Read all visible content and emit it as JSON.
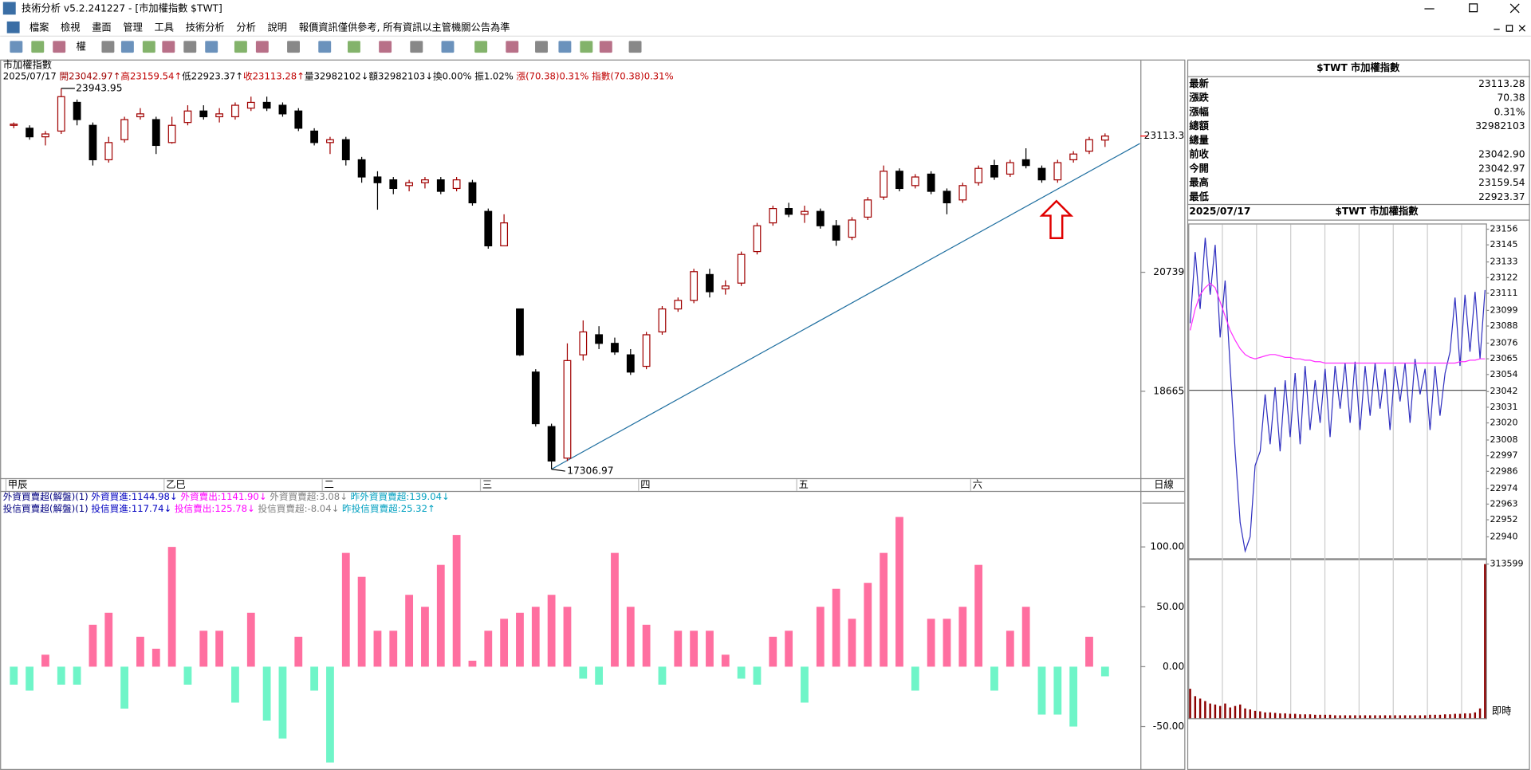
{
  "window": {
    "title": "技術分析 v5.2.241227 - [市加權指數 $TWT]"
  },
  "menu": [
    "檔案",
    "檢視",
    "畫面",
    "管理",
    "工具",
    "技術分析",
    "分析",
    "說明",
    "報價資訊僅供參考, 所有資訊以主管機關公告為準"
  ],
  "toolbar": {
    "label": "權"
  },
  "quote": {
    "title": "$TWT 市加權指數",
    "rows": [
      {
        "label": "最新",
        "value": "23113.28",
        "color": "#a00000"
      },
      {
        "label": "漲跌",
        "value": "70.38",
        "color": "#a00000"
      },
      {
        "label": "漲幅",
        "value": "0.31%",
        "color": "#a00000"
      },
      {
        "label": "總額",
        "value": "32982103",
        "color": "#000000"
      },
      {
        "label": "總量"
      },
      {
        "label": "前收",
        "value": "23042.90",
        "color": "#000000"
      },
      {
        "label": "今開",
        "value": "23042.97",
        "color": "#a00000"
      },
      {
        "label": "最高",
        "value": "23159.54",
        "color": "#a00000"
      },
      {
        "label": "最低",
        "value": "22923.37",
        "color": "#008000"
      }
    ]
  },
  "chart_data": [
    {
      "type": "candlestick",
      "title": "市加權指數",
      "period": "日線",
      "info": [
        {
          "text": "2025/07/17 ",
          "color": "#000000"
        },
        {
          "text": "開23042.97↑",
          "color": "#a00000"
        },
        {
          "text": "高23159.54↑",
          "color": "#c00000"
        },
        {
          "text": "低22923.37↑",
          "color": "#000000"
        },
        {
          "text": "收23113.28↑",
          "color": "#c00000"
        },
        {
          "text": "量32982102↓",
          "color": "#000000"
        },
        {
          "text": "額32982103↓",
          "color": "#000000"
        },
        {
          "text": "換0.00% 振1.02% ",
          "color": "#000000"
        },
        {
          "text": "漲(70.38)0.31% ",
          "color": "#c00000"
        },
        {
          "text": "指數(70.38)0.31%",
          "color": "#c00000"
        }
      ],
      "categories": [
        "甲辰",
        null,
        null,
        null,
        null,
        null,
        null,
        null,
        null,
        null,
        "乙巳",
        null,
        null,
        null,
        null,
        null,
        null,
        null,
        null,
        null,
        "二",
        null,
        null,
        null,
        null,
        null,
        null,
        null,
        null,
        null,
        "三",
        null,
        null,
        null,
        null,
        null,
        null,
        null,
        null,
        null,
        "四",
        null,
        null,
        null,
        null,
        null,
        null,
        null,
        null,
        null,
        "五",
        null,
        null,
        null,
        null,
        null,
        null,
        null,
        null,
        null,
        null,
        "六",
        null,
        null,
        null,
        null,
        null,
        null,
        null,
        null
      ],
      "open": [
        23300,
        23250,
        23100,
        23200,
        23700,
        23300,
        22700,
        23050,
        23450,
        23400,
        23000,
        23350,
        23550,
        23450,
        23450,
        23600,
        23700,
        23650,
        23550,
        23200,
        23000,
        23050,
        22700,
        22400,
        22350,
        22250,
        22300,
        22350,
        22200,
        22300,
        21800,
        21200,
        20100,
        19000,
        18050,
        17500,
        19300,
        19650,
        19500,
        19300,
        19100,
        19700,
        20100,
        20250,
        20700,
        20450,
        20550,
        21100,
        21600,
        21850,
        21750,
        21800,
        21550,
        21350,
        21700,
        22050,
        22500,
        22250,
        22450,
        22150,
        22000,
        22300,
        22600,
        22450,
        22700,
        22550,
        22350,
        22700,
        22850,
        23042.97
      ],
      "high": [
        23350,
        23300,
        23200,
        23943.95,
        23750,
        23350,
        23100,
        23450,
        23600,
        23450,
        23450,
        23650,
        23650,
        23600,
        23700,
        23800,
        23800,
        23700,
        23600,
        23250,
        23100,
        23100,
        22750,
        22500,
        22400,
        22350,
        22400,
        22400,
        22400,
        22350,
        21850,
        21750,
        20100,
        19050,
        18100,
        19500,
        19900,
        19800,
        19600,
        19400,
        19700,
        20150,
        20300,
        20800,
        20800,
        20600,
        21100,
        21600,
        21900,
        21950,
        21900,
        21850,
        21650,
        21700,
        22050,
        22600,
        22550,
        22450,
        22500,
        22200,
        22300,
        22600,
        22700,
        22700,
        22900,
        22600,
        22700,
        22850,
        23100,
        23159.54
      ],
      "low": [
        23250,
        23050,
        22950,
        23150,
        23300,
        22600,
        22650,
        23000,
        23400,
        22800,
        22980,
        23300,
        23400,
        23350,
        23400,
        23550,
        23550,
        23450,
        23200,
        22950,
        22800,
        22600,
        22300,
        21830,
        22100,
        22150,
        22200,
        22100,
        22150,
        21900,
        21150,
        21200,
        19280,
        18050,
        17306.97,
        17450,
        19200,
        19400,
        19300,
        18950,
        19050,
        19650,
        20050,
        20200,
        20300,
        20350,
        20500,
        21050,
        21550,
        21700,
        21600,
        21500,
        21200,
        21300,
        21650,
        22000,
        22150,
        22200,
        22100,
        21750,
        21950,
        22250,
        22350,
        22400,
        22550,
        22300,
        22300,
        22650,
        22800,
        22923.37
      ],
      "close": [
        23320,
        23100,
        23150,
        23800,
        23400,
        22700,
        23000,
        23400,
        23500,
        22950,
        23300,
        23550,
        23450,
        23500,
        23650,
        23700,
        23600,
        23500,
        23250,
        23000,
        23050,
        22700,
        22400,
        22300,
        22200,
        22300,
        22350,
        22150,
        22350,
        21950,
        21200,
        21600,
        19300,
        18100,
        17450,
        19200,
        19700,
        19500,
        19350,
        19000,
        19650,
        20100,
        20250,
        20750,
        20400,
        20500,
        21050,
        21550,
        21850,
        21750,
        21800,
        21550,
        21300,
        21650,
        22000,
        22500,
        22200,
        22400,
        22150,
        21950,
        22250,
        22550,
        22400,
        22650,
        22600,
        22350,
        22650,
        22800,
        23050,
        23113.28
      ],
      "up_color": "#a00000",
      "down_color": "#000000",
      "ylim": [
        17150,
        24430
      ],
      "yticks": [
        18665,
        20739
      ],
      "grid": false,
      "price_marker": {
        "value": 23113.28,
        "label": "23113.3",
        "color": "#ff0000"
      },
      "trendline": {
        "color": "#1f6fa0",
        "points": [
          [
            34,
            17306.97
          ],
          [
            71.2,
            22983
          ]
        ]
      }
    },
    {
      "type": "bar",
      "legend": [
        [
          {
            "text": "外資買賣超(解盤)(1) ",
            "color": "#000080"
          },
          {
            "text": "外資買進:1144.98↓ ",
            "color": "#0000c0"
          },
          {
            "text": "外資賣出:1141.90↓ ",
            "color": "#ff00ff"
          },
          {
            "text": "外資買賣超:3.08↓ ",
            "color": "#808080"
          },
          {
            "text": "昨外資買賣超:139.04↓",
            "color": "#00a0c0"
          }
        ],
        [
          {
            "text": "投信買賣超(解盤)(1) ",
            "color": "#000080"
          },
          {
            "text": "投信買進:117.74↓ ",
            "color": "#0000c0"
          },
          {
            "text": "投信賣出:125.78↓ ",
            "color": "#ff00ff"
          },
          {
            "text": "投信買賣超:-8.04↓ ",
            "color": "#808080"
          },
          {
            "text": "昨投信買賣超:25.32↑",
            "color": "#00a0c0"
          }
        ]
      ],
      "values": [
        -15,
        -20,
        10,
        -15,
        -15,
        35,
        45,
        -35,
        25,
        15,
        100,
        -15,
        30,
        30,
        -30,
        45,
        -45,
        -60,
        25,
        -20,
        -80,
        95,
        75,
        30,
        30,
        60,
        50,
        85,
        110,
        5,
        30,
        40,
        45,
        50,
        60,
        50,
        -10,
        -15,
        95,
        50,
        35,
        -15,
        30,
        30,
        30,
        10,
        -10,
        -15,
        25,
        30,
        -30,
        50,
        65,
        40,
        70,
        95,
        125,
        -20,
        40,
        40,
        50,
        85,
        -20,
        30,
        50,
        -40,
        -40,
        -50,
        25,
        -8.04
      ],
      "pos_color": "#ff6fa0",
      "neg_color": "#6ff5c8",
      "ylim": [
        -83,
        137
      ],
      "yticks": [
        {
          "value": -50,
          "label": "-50.00"
        },
        {
          "value": 0,
          "label": "0.00"
        },
        {
          "value": 50,
          "label": "50.00"
        },
        {
          "value": 100,
          "label": "100.00"
        }
      ]
    },
    {
      "type": "line",
      "date": "2025/07/17",
      "title": "$TWT 市加權指數",
      "reference": 23042.9,
      "series": [
        {
          "color": "#3030c0",
          "values": [
            23090,
            23140,
            23100,
            23150,
            23110,
            23145,
            23080,
            23120,
            23060,
            23000,
            22950,
            22930,
            22940,
            22990,
            23000,
            23040,
            23005,
            23045,
            23000,
            23050,
            23010,
            23055,
            23005,
            23060,
            23015,
            23050,
            23020,
            23058,
            23010,
            23060,
            23030,
            23062,
            23020,
            23063,
            23015,
            23060,
            23025,
            23062,
            23030,
            23058,
            23015,
            23060,
            23035,
            23062,
            23020,
            23065,
            23040,
            23058,
            23015,
            23060,
            23025,
            23055,
            23070,
            23108,
            23060,
            23110,
            23070,
            23112,
            23065,
            23113.28
          ]
        },
        {
          "color": "#ff30ff",
          "values": [
            23085,
            23100,
            23110,
            23115,
            23118,
            23115,
            23105,
            23095,
            23085,
            23078,
            23072,
            23068,
            23066,
            23065,
            23066,
            23067,
            23068,
            23068,
            23067,
            23066,
            23066,
            23065,
            23065,
            23064,
            23064,
            23063,
            23063,
            23062,
            23062,
            23062,
            23062,
            23062,
            23062,
            23062,
            23062,
            23062,
            23062,
            23062,
            23062,
            23062,
            23062,
            23062,
            23062,
            23062,
            23062,
            23062,
            23062,
            23062,
            23062,
            23062,
            23062,
            23062,
            23062,
            23062,
            23063,
            23063,
            23064,
            23064,
            23065,
            23065
          ]
        }
      ],
      "ylim": [
        22925,
        23160
      ],
      "yticks": [
        23156,
        23145,
        23133,
        23122,
        23111,
        23099,
        23088,
        23076,
        23065,
        23054,
        23042,
        23031,
        23020,
        23008,
        22997,
        22986,
        22974,
        22963,
        22952,
        22940
      ],
      "up_color": "#a00000",
      "down_color": "#000000"
    },
    {
      "type": "bar",
      "period": "即時",
      "color": "#8b0000",
      "values": [
        60000,
        45000,
        40000,
        35000,
        30000,
        28000,
        25000,
        30000,
        22000,
        25000,
        28000,
        20000,
        18000,
        15000,
        14000,
        12000,
        12000,
        11000,
        10000,
        10000,
        9000,
        9000,
        8000,
        8000,
        8000,
        7000,
        7000,
        7000,
        7000,
        6000,
        6000,
        6000,
        6000,
        6000,
        6000,
        6000,
        6000,
        6000,
        6000,
        6000,
        6000,
        6000,
        6000,
        6000,
        6000,
        6000,
        6000,
        6000,
        7000,
        7000,
        7000,
        8000,
        8000,
        9000,
        9000,
        10000,
        10000,
        12000,
        20000,
        313599
      ],
      "ylim": [
        0,
        313599
      ],
      "yticks": [
        313599
      ]
    }
  ]
}
